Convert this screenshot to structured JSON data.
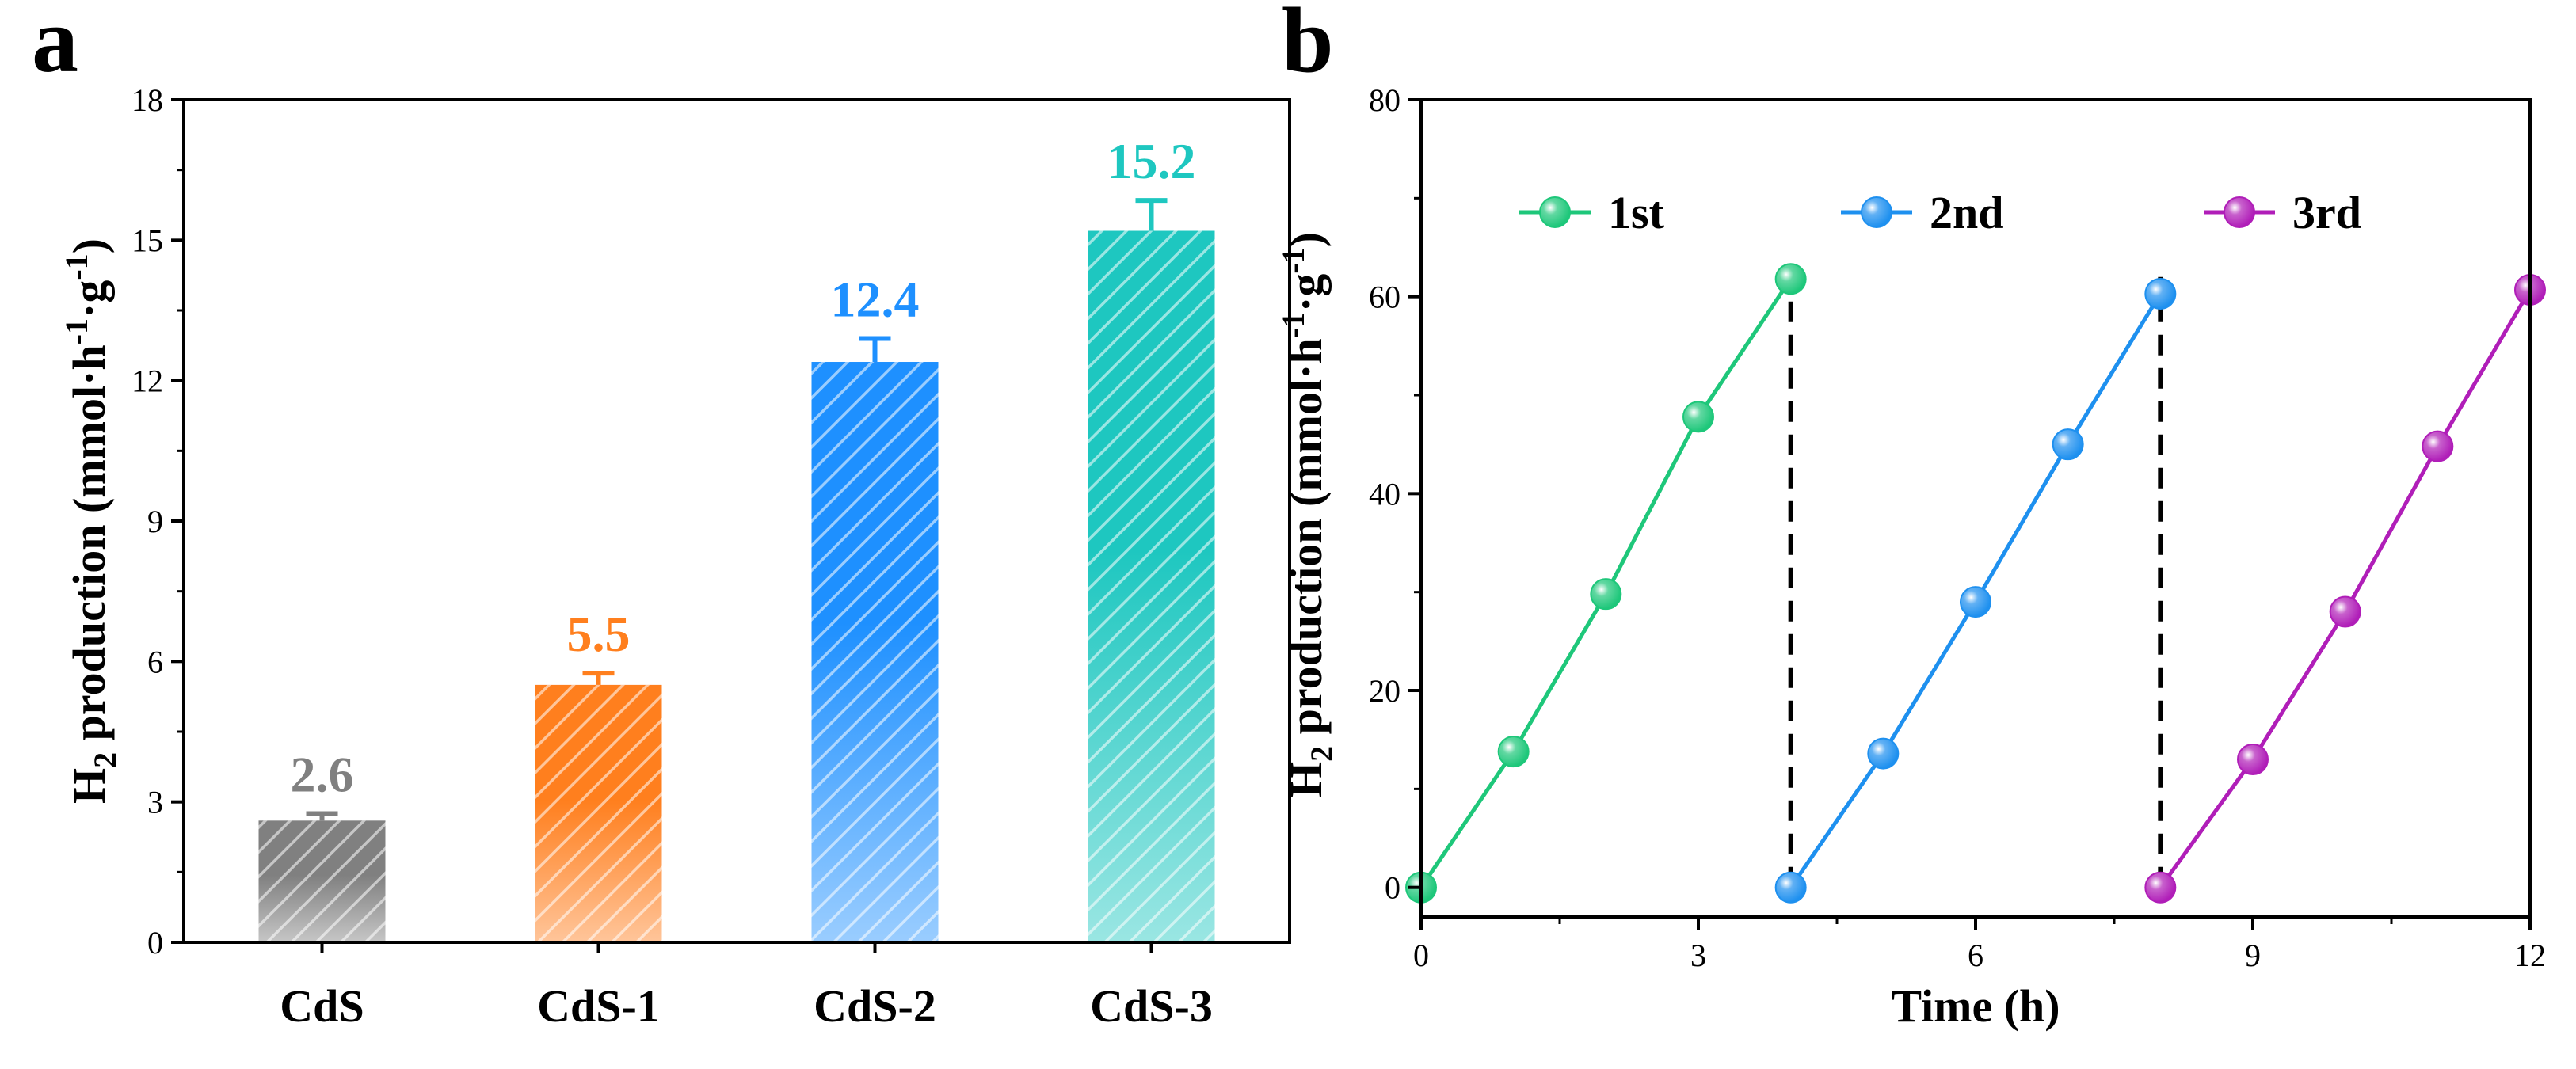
{
  "chart_data": [
    {
      "panel": "a",
      "type": "bar",
      "categories": [
        "CdS",
        "CdS-1",
        "CdS-2",
        "CdS-3"
      ],
      "values": [
        2.6,
        5.5,
        12.4,
        15.2
      ],
      "errors": [
        0.15,
        0.25,
        0.5,
        0.65
      ],
      "value_labels": [
        "2.6",
        "5.5",
        "12.4",
        "15.2"
      ],
      "colors": [
        "#808080",
        "#ff7f1e",
        "#1e90ff",
        "#1ec7c0"
      ],
      "ylabel_main": "H",
      "ylabel_sub": "2",
      "ylabel_rest": " production (mmol·h",
      "ylabel_sup1": "-1",
      "ylabel_mid": "·g",
      "ylabel_sup2": "-1",
      "ylabel_end": ")",
      "ylim": [
        0,
        18
      ],
      "yticks": [
        0,
        3,
        6,
        9,
        12,
        15,
        18
      ],
      "ytick_labels": [
        "0",
        "3",
        "6",
        "9",
        "12",
        "15",
        "18"
      ]
    },
    {
      "panel": "b",
      "type": "line",
      "series": [
        {
          "name": "1st",
          "color": "#1ec77a",
          "x": [
            0,
            1,
            2,
            3,
            4
          ],
          "y": [
            0,
            13.8,
            29.8,
            47.8,
            61.8
          ]
        },
        {
          "name": "2nd",
          "color": "#1e90ef",
          "x": [
            4,
            5,
            6,
            7,
            8
          ],
          "y": [
            0,
            13.6,
            29,
            45,
            60.3
          ]
        },
        {
          "name": "3rd",
          "color": "#b01eb8",
          "x": [
            8,
            9,
            10,
            11,
            12
          ],
          "y": [
            0,
            13,
            28,
            44.8,
            60.7
          ]
        }
      ],
      "dashed_lines_x": [
        4,
        8
      ],
      "xlabel": "Time (h)",
      "ylabel_main": "H",
      "ylabel_sub": "2",
      "ylabel_rest": " production (mmol·h",
      "ylabel_sup1": "-1",
      "ylabel_mid": "·g",
      "ylabel_sup2": "-1",
      "ylabel_end": ")",
      "xlim": [
        0,
        12
      ],
      "ylim": [
        -3,
        80
      ],
      "xticks": [
        0,
        3,
        6,
        9,
        12
      ],
      "xtick_labels": [
        "0",
        "3",
        "6",
        "9",
        "12"
      ],
      "yticks": [
        0,
        20,
        40,
        60,
        80
      ],
      "ytick_labels": [
        "0",
        "20",
        "40",
        "60",
        "80"
      ]
    }
  ],
  "panel_labels": {
    "a": "a",
    "b": "b"
  }
}
